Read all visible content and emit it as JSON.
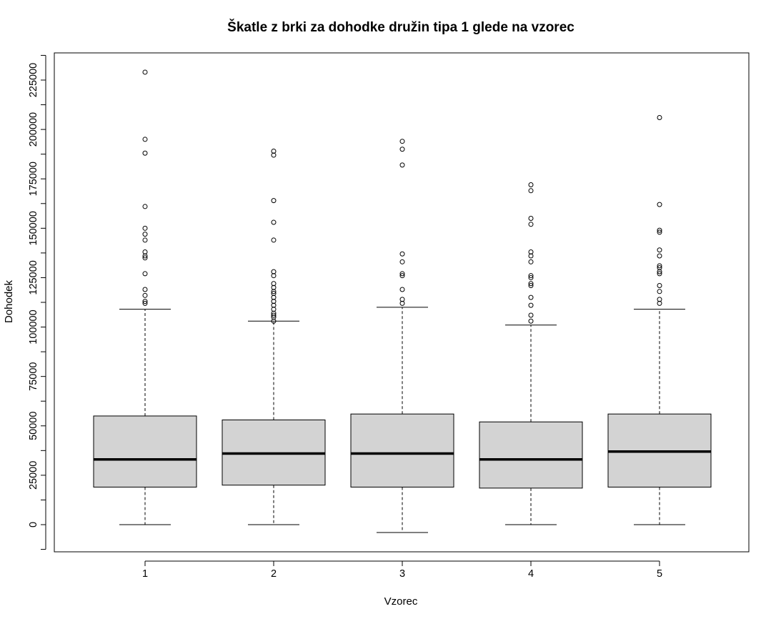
{
  "chart_data": {
    "type": "boxplot",
    "title": "Škatle z brki za dohodke družin tipa 1 glede na vzorec",
    "xlabel": "Vzorec",
    "ylabel": "Dohodek",
    "categories": [
      "1",
      "2",
      "3",
      "4",
      "5"
    ],
    "y_ticks": [
      0,
      25000,
      50000,
      75000,
      100000,
      125000,
      150000,
      175000,
      200000,
      225000
    ],
    "y_tick_labels": [
      "0",
      "25000",
      "50000",
      "75000",
      "100000",
      "125000",
      "150000",
      "175000",
      "200000",
      "225000"
    ],
    "ylim": [
      -14000,
      238000
    ],
    "grid": false,
    "legend": "none",
    "colors": {
      "box_fill": "#d3d3d3",
      "stroke": "#000000"
    },
    "boxes": [
      {
        "name": "1",
        "whisker_low": 0,
        "q1": 19000,
        "median": 33000,
        "q3": 55000,
        "whisker_high": 109000,
        "outliers": [
          229000,
          195000,
          188000,
          161000,
          150000,
          147000,
          144000,
          138000,
          136000,
          135000,
          127000,
          119000,
          116000,
          113000,
          112000
        ]
      },
      {
        "name": "2",
        "whisker_low": 0,
        "q1": 20000,
        "median": 36000,
        "q3": 53000,
        "whisker_high": 103000,
        "outliers": [
          189000,
          187000,
          164000,
          153000,
          144000,
          128000,
          126000,
          122000,
          120000,
          118000,
          117000,
          115000,
          113000,
          111000,
          109000,
          107000,
          106000,
          105000,
          103000
        ]
      },
      {
        "name": "3",
        "whisker_low": -4000,
        "q1": 19000,
        "median": 36000,
        "q3": 56000,
        "whisker_high": 110000,
        "outliers": [
          194000,
          190000,
          182000,
          137000,
          133000,
          127000,
          126000,
          119000,
          114000,
          112000
        ]
      },
      {
        "name": "4",
        "whisker_low": 0,
        "q1": 18500,
        "median": 33000,
        "q3": 52000,
        "whisker_high": 101000,
        "outliers": [
          172000,
          169000,
          155000,
          152000,
          138000,
          136000,
          133000,
          126000,
          125000,
          122000,
          121000,
          115000,
          111000,
          106000,
          103000
        ]
      },
      {
        "name": "5",
        "whisker_low": 0,
        "q1": 19000,
        "median": 37000,
        "q3": 56000,
        "whisker_high": 109000,
        "outliers": [
          206000,
          162000,
          149000,
          148000,
          139000,
          136000,
          131000,
          130000,
          128000,
          127000,
          121000,
          118000,
          114000,
          112000
        ]
      }
    ]
  }
}
